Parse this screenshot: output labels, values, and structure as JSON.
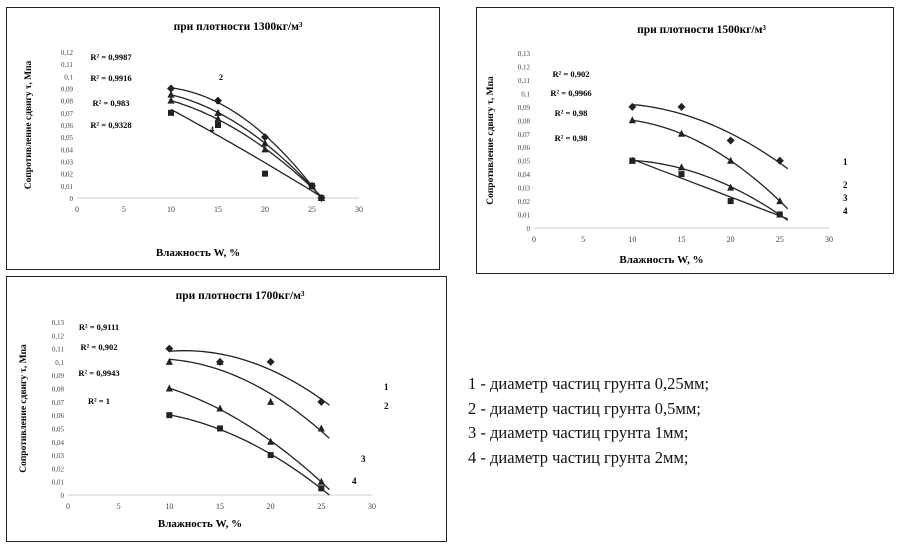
{
  "chart_data": [
    {
      "type": "scatter",
      "title": "при плотности 1300кг/м³",
      "xlabel": "Влажность W, %",
      "ylabel": "Сопротивление сдвигу τ, Мпа",
      "xlim": [
        0,
        30
      ],
      "ylim": [
        0,
        0.12
      ],
      "xticks": [
        "0",
        "5",
        "10",
        "15",
        "20",
        "25",
        "30"
      ],
      "yticks": [
        "0",
        "0,01",
        "0,02",
        "0,03",
        "0,04",
        "0,05",
        "0,06",
        "0,07",
        "0,08",
        "0,09",
        "0,1",
        "0,11",
        "0,12"
      ],
      "r2_labels": [
        "R² = 0,9987",
        "R² = 0,9916",
        "R² = 0,983",
        "R² = 0,9328"
      ],
      "series": [
        {
          "name": "1",
          "x": [
            10,
            15,
            20,
            25,
            26
          ],
          "y": [
            0.09,
            0.08,
            0.05,
            0.01,
            0.0
          ]
        },
        {
          "name": "2",
          "x": [
            10,
            15,
            20,
            25,
            26
          ],
          "y": [
            0.085,
            0.07,
            0.045,
            0.01,
            0.0
          ]
        },
        {
          "name": "3",
          "x": [
            10,
            15,
            20,
            25,
            26
          ],
          "y": [
            0.08,
            0.065,
            0.04,
            0.01,
            0.0
          ]
        },
        {
          "name": "4",
          "x": [
            10,
            15,
            20,
            25,
            26
          ],
          "y": [
            0.07,
            0.06,
            0.02,
            0.01,
            0.0
          ]
        }
      ]
    },
    {
      "type": "scatter",
      "title": "при плотности 1500кг/м³",
      "xlabel": "Влажность W, %",
      "ylabel": "Сопротивление сдвигу τ, Мпа",
      "xlim": [
        0,
        30
      ],
      "ylim": [
        0,
        0.13
      ],
      "xticks": [
        "0",
        "5",
        "10",
        "15",
        "20",
        "25",
        "30"
      ],
      "yticks": [
        "0",
        "0,01",
        "0,02",
        "0,03",
        "0,04",
        "0,05",
        "0,06",
        "0,07",
        "0,08",
        "0,09",
        "0,1",
        "0,11",
        "0,12",
        "0,13"
      ],
      "r2_labels": [
        "R² = 0,902",
        "R² = 0,9966",
        "R² = 0,98",
        "R² = 0,98"
      ],
      "series": [
        {
          "name": "1",
          "x": [
            10,
            15,
            20,
            25
          ],
          "y": [
            0.09,
            0.09,
            0.065,
            0.05
          ]
        },
        {
          "name": "2",
          "x": [
            10,
            15,
            20,
            25
          ],
          "y": [
            0.08,
            0.07,
            0.05,
            0.02
          ]
        },
        {
          "name": "3",
          "x": [
            10,
            15,
            20,
            25
          ],
          "y": [
            0.05,
            0.045,
            0.03,
            0.01
          ]
        },
        {
          "name": "4",
          "x": [
            10,
            15,
            20,
            25
          ],
          "y": [
            0.05,
            0.04,
            0.02,
            0.01
          ]
        }
      ]
    },
    {
      "type": "scatter",
      "title": "при плотности 1700кг/м³",
      "xlabel": "Влажность W, %",
      "ylabel": "Сопротивление сдвигу τ, Мпа",
      "xlim": [
        0,
        30
      ],
      "ylim": [
        0,
        0.13
      ],
      "xticks": [
        "0",
        "5",
        "10",
        "15",
        "20",
        "25",
        "30"
      ],
      "yticks": [
        "0",
        "0,01",
        "0,02",
        "0,03",
        "0,04",
        "0,05",
        "0,06",
        "0,07",
        "0,08",
        "0,09",
        "0,1",
        "0,11",
        "0,12",
        "0,13"
      ],
      "r2_labels": [
        "R² = 0,9111",
        "R² = 0,902",
        "R² = 0,9943",
        "R² = 1"
      ],
      "series": [
        {
          "name": "1",
          "x": [
            10,
            15,
            20,
            25
          ],
          "y": [
            0.11,
            0.1,
            0.1,
            0.07
          ]
        },
        {
          "name": "2",
          "x": [
            10,
            15,
            20,
            25
          ],
          "y": [
            0.1,
            0.1,
            0.07,
            0.05
          ]
        },
        {
          "name": "3",
          "x": [
            10,
            15,
            20,
            25
          ],
          "y": [
            0.08,
            0.065,
            0.04,
            0.01
          ]
        },
        {
          "name": "4",
          "x": [
            10,
            15,
            20,
            25
          ],
          "y": [
            0.06,
            0.05,
            0.03,
            0.005
          ]
        }
      ]
    }
  ],
  "legend": {
    "items": [
      "1 - диаметр частиц грунта 0,25мм;",
      "2 - диаметр частиц грунта 0,5мм;",
      "3 - диаметр частиц грунта 1мм;",
      "4 - диаметр частиц грунта 2мм;"
    ]
  }
}
